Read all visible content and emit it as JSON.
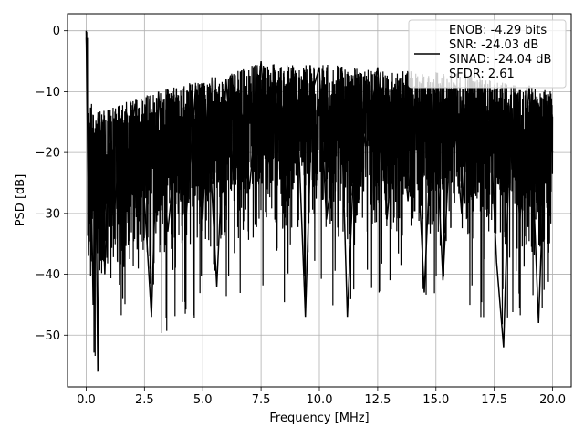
{
  "chart_data": {
    "type": "line",
    "title": "",
    "xlabel": "Frequency [MHz]",
    "ylabel": "PSD [dB]",
    "xlim": [
      -0.8,
      20.8
    ],
    "ylim": [
      -58.5,
      2.8
    ],
    "xticks": [
      0.0,
      2.5,
      5.0,
      7.5,
      10.0,
      12.5,
      15.0,
      17.5,
      20.0
    ],
    "xtick_labels": [
      "0.0",
      "2.5",
      "5.0",
      "7.5",
      "10.0",
      "12.5",
      "15.0",
      "17.5",
      "20.0"
    ],
    "yticks": [
      0,
      -10,
      -20,
      -30,
      -40,
      -50
    ],
    "ytick_labels": [
      "0",
      "−10",
      "−20",
      "−30",
      "−40",
      "−50"
    ],
    "grid": true,
    "legend_position": "top-right",
    "legend_entries": [
      "ENOB: -4.29 bits",
      "SNR: -24.03 dB",
      "SINAD: -24.04 dB",
      "SFDR: 2.61"
    ],
    "series": [
      {
        "color": "#000000",
        "description": "Dense noisy PSD trace (approximate envelope/sample)",
        "x": [
          0.0,
          0.05,
          0.1,
          0.2,
          0.3,
          0.4,
          0.5,
          0.6,
          0.8,
          1.0,
          1.2,
          1.5,
          1.8,
          2.1,
          2.5,
          2.8,
          3.1,
          3.5,
          4.0,
          4.3,
          4.7,
          5.0,
          5.2,
          5.6,
          6.0,
          6.3,
          6.6,
          7.0,
          7.5,
          7.8,
          8.2,
          8.6,
          9.0,
          9.4,
          9.7,
          10.0,
          10.3,
          10.5,
          10.9,
          11.2,
          11.6,
          12.0,
          12.5,
          12.9,
          13.4,
          13.8,
          14.1,
          14.5,
          14.9,
          15.3,
          15.7,
          16.1,
          16.5,
          16.9,
          17.3,
          17.6,
          17.9,
          18.2,
          18.6,
          19.0,
          19.4,
          19.7,
          20.0
        ],
        "y": [
          0,
          -15,
          -37,
          -20,
          -45,
          -18,
          -56,
          -15,
          -40,
          -13,
          -30,
          -17,
          -22,
          -12,
          -28,
          -47,
          -10,
          -33,
          -14,
          -30,
          -9,
          -31,
          -12,
          -42,
          -8,
          -24,
          -11,
          -26,
          -5,
          -22,
          -9,
          -28,
          -7,
          -47,
          -10,
          -6,
          -31,
          -25,
          -8,
          -47,
          -11,
          -19,
          -6,
          -31,
          -9,
          -28,
          -12,
          -43,
          -8,
          -41,
          -10,
          -30,
          -7,
          -25,
          -13,
          -38,
          -52,
          -12,
          -31,
          -9,
          -48,
          -15,
          -20
        ]
      }
    ],
    "noise_seed": 7,
    "noise_points": 4000
  }
}
